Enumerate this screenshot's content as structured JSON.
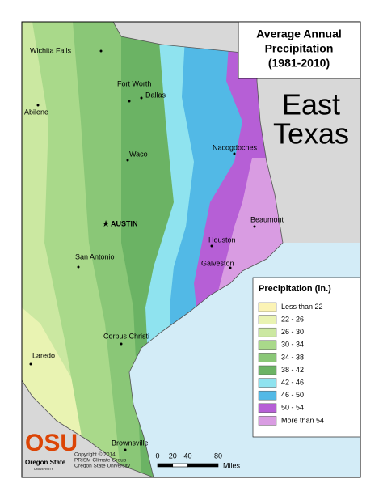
{
  "title": [
    "Average Annual",
    "Precipitation",
    "(1981-2010)"
  ],
  "region_label": [
    "East",
    "Texas"
  ],
  "cities": [
    {
      "label": "Wichita Falls"
    },
    {
      "label": "Fort Worth"
    },
    {
      "label": "Dallas"
    },
    {
      "label": "Abilene"
    },
    {
      "label": "Waco"
    },
    {
      "label": "AUSTIN"
    },
    {
      "label": "San Antonio"
    },
    {
      "label": "Corpus Christi"
    },
    {
      "label": "Laredo"
    },
    {
      "label": "Brownsville"
    },
    {
      "label": "Nacogdoches"
    },
    {
      "label": "Beaumont"
    },
    {
      "label": "Houston"
    },
    {
      "label": "Galveston"
    }
  ],
  "legend": {
    "title": "Precipitation (in.)",
    "items": [
      {
        "label": "Less than 22",
        "color": "#fbf3b5"
      },
      {
        "label": "22 - 26",
        "color": "#e9f3b2"
      },
      {
        "label": "26 - 30",
        "color": "#cbe8a1"
      },
      {
        "label": "30 - 34",
        "color": "#a9d98a"
      },
      {
        "label": "34 - 38",
        "color": "#8ac777"
      },
      {
        "label": "38 - 42",
        "color": "#6bb364"
      },
      {
        "label": "42 - 46",
        "color": "#8fe3ef"
      },
      {
        "label": "46 - 50",
        "color": "#52b9e6"
      },
      {
        "label": "50 - 54",
        "color": "#b65fd6"
      },
      {
        "label": "More than 54",
        "color": "#d99ce2"
      }
    ]
  },
  "scale": {
    "ticks": [
      0,
      20,
      40,
      80
    ],
    "unit": "Miles"
  },
  "logo": {
    "mark": "OSU",
    "name": "Oregon State",
    "sub": "UNIVERSITY"
  },
  "credits": [
    "Copyright © 2014",
    "PRISM Climate Group",
    "Oregon State University"
  ]
}
